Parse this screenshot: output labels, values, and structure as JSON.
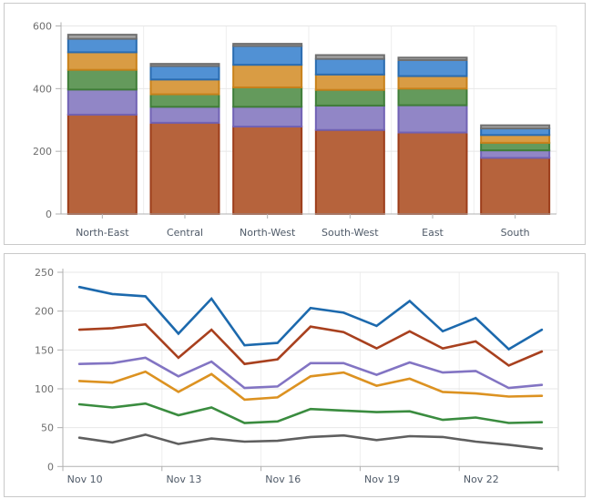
{
  "window": {
    "background": "#ffffff",
    "panel_border": "#c9c9c9",
    "axis_color": "#b0b0b0",
    "grid_color": "#e7e7e7",
    "tick_label_color": "#6e6e6e",
    "category_label_color": "#4f5a68"
  },
  "chart_data": [
    {
      "type": "bar",
      "stacked": true,
      "title": "",
      "xlabel": "",
      "ylabel": "",
      "categories": [
        "North-East",
        "Central",
        "North-West",
        "South-West",
        "East",
        "South"
      ],
      "series": [
        {
          "name": "rust",
          "color": "#9c3d1a",
          "fill": "#b6633c",
          "values": [
            317,
            291,
            279,
            268,
            260,
            179
          ]
        },
        {
          "name": "purple",
          "color": "#7162b4",
          "fill": "#9186c6",
          "values": [
            80,
            51,
            63,
            78,
            87,
            24
          ]
        },
        {
          "name": "green",
          "color": "#3f7d39",
          "fill": "#649a5c",
          "values": [
            63,
            40,
            62,
            50,
            53,
            24
          ]
        },
        {
          "name": "orange",
          "color": "#c8811b",
          "fill": "#d99c44",
          "values": [
            56,
            47,
            72,
            49,
            40,
            25
          ]
        },
        {
          "name": "blue",
          "color": "#2a6cb0",
          "fill": "#5191d4",
          "values": [
            43,
            43,
            60,
            50,
            51,
            21
          ]
        },
        {
          "name": "gray",
          "color": "#6f6f6f",
          "fill": "#a6a6a6",
          "values": [
            13,
            7,
            7,
            12,
            8,
            10
          ]
        }
      ],
      "ylim": [
        0,
        600
      ],
      "yticks": [
        0,
        200,
        400,
        600
      ],
      "ytick_labels": [
        "0",
        "200",
        "400",
        "600"
      ],
      "grid": true,
      "legend": "none"
    },
    {
      "type": "line",
      "title": "",
      "xlabel": "",
      "ylabel": "",
      "n_points": 15,
      "x_tick_labels": [
        {
          "index": 0,
          "label": "Nov 10"
        },
        {
          "index": 3,
          "label": "Nov 13"
        },
        {
          "index": 6,
          "label": "Nov 16"
        },
        {
          "index": 9,
          "label": "Nov 19"
        },
        {
          "index": 12,
          "label": "Nov 22"
        }
      ],
      "series": [
        {
          "name": "blue",
          "color": "#1c69ad",
          "values": [
            231,
            222,
            219,
            171,
            216,
            156,
            159,
            204,
            198,
            181,
            213,
            174,
            191,
            151,
            176
          ]
        },
        {
          "name": "red",
          "color": "#a8401e",
          "values": [
            176,
            178,
            183,
            140,
            176,
            132,
            138,
            180,
            173,
            152,
            174,
            152,
            161,
            130,
            148
          ]
        },
        {
          "name": "purple",
          "color": "#8274c3",
          "values": [
            132,
            133,
            140,
            116,
            135,
            101,
            103,
            133,
            133,
            118,
            134,
            121,
            123,
            101,
            105
          ]
        },
        {
          "name": "orange",
          "color": "#dc9221",
          "values": [
            110,
            108,
            122,
            96,
            119,
            86,
            89,
            116,
            121,
            104,
            113,
            96,
            94,
            90,
            91
          ]
        },
        {
          "name": "green",
          "color": "#3a8c3f",
          "values": [
            80,
            76,
            81,
            66,
            76,
            56,
            58,
            74,
            72,
            70,
            71,
            60,
            63,
            56,
            57
          ]
        },
        {
          "name": "gray",
          "color": "#5f5f5f",
          "values": [
            37,
            31,
            41,
            29,
            36,
            32,
            33,
            38,
            40,
            34,
            39,
            38,
            32,
            28,
            23
          ]
        }
      ],
      "ylim": [
        0,
        250
      ],
      "yticks": [
        0,
        50,
        100,
        150,
        200,
        250
      ],
      "ytick_labels": [
        "0",
        "50",
        "100",
        "150",
        "200",
        "250"
      ],
      "grid": true,
      "legend": "none"
    }
  ]
}
